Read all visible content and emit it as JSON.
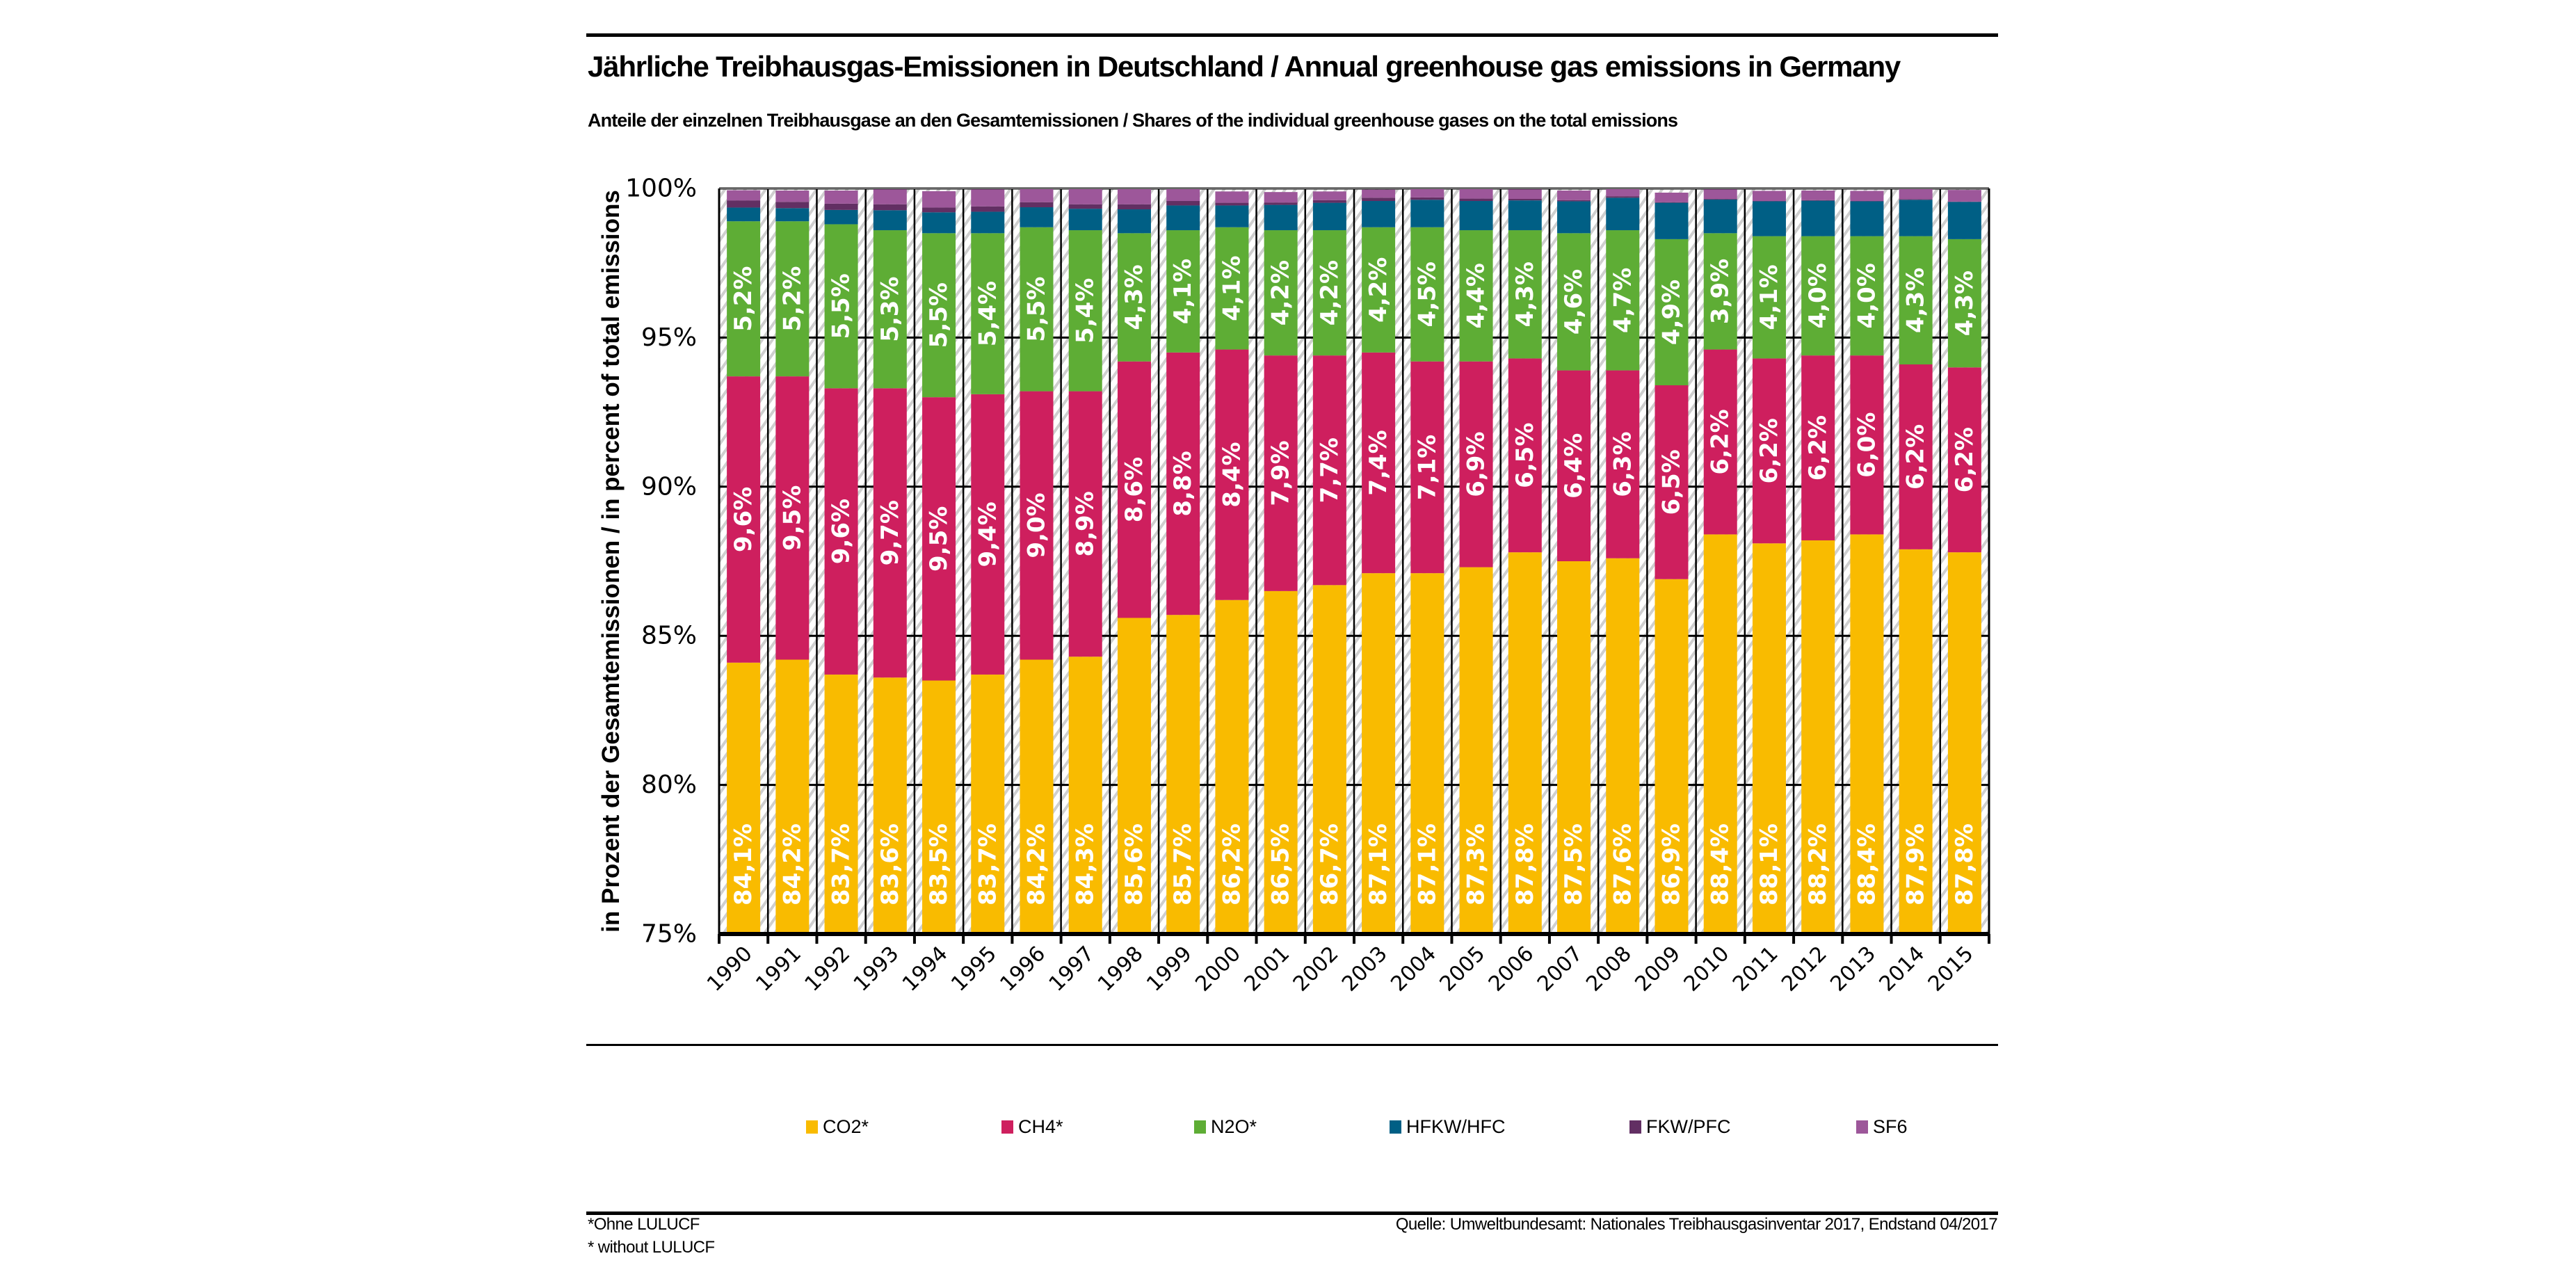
{
  "header": {
    "title": "Jährliche Treibhausgas-Emissionen in Deutschland / Annual greenhouse gas emissions in Germany",
    "subtitle": "Anteile der einzelnen Treibhausgase an den Gesamtemissionen / Shares of the individual greenhouse gases on the total emissions"
  },
  "footer": {
    "note_de": "*Ohne LULUCF",
    "note_en": "* without LULUCF",
    "source": "Quelle: Umweltbundesamt: Nationales Treibhausgasinventar 2017, Endstand 04/2017"
  },
  "chart_data": {
    "type": "bar",
    "stacked": true,
    "title": "Jährliche Treibhausgas-Emissionen in Deutschland / Annual greenhouse gas emissions in Germany",
    "subtitle": "Anteile der einzelnen Treibhausgase an den Gesamtemissionen / Shares of the individual greenhouse gases on the total emissions",
    "xlabel": "",
    "ylabel": "in Prozent der Gesamtemissionen / in percent of total emissions",
    "ylim": [
      75,
      100
    ],
    "yticks": [
      "75%",
      "80%",
      "85%",
      "90%",
      "95%",
      "100%"
    ],
    "ytick_values": [
      75,
      80,
      85,
      90,
      95,
      100
    ],
    "grid": true,
    "legend_position": "bottom",
    "categories": [
      "1990",
      "1991",
      "1992",
      "1993",
      "1994",
      "1995",
      "1996",
      "1997",
      "1998",
      "1999",
      "2000",
      "2001",
      "2002",
      "2003",
      "2004",
      "2005",
      "2006",
      "2007",
      "2008",
      "2009",
      "2010",
      "2011",
      "2012",
      "2013",
      "2014",
      "2015"
    ],
    "series": [
      {
        "name": "CO2*",
        "color": "#F9BB00",
        "labeled": true,
        "values": [
          84.1,
          84.2,
          83.7,
          83.6,
          83.5,
          83.7,
          84.2,
          84.3,
          85.6,
          85.7,
          86.2,
          86.5,
          86.7,
          87.1,
          87.1,
          87.3,
          87.8,
          87.5,
          87.6,
          86.9,
          88.4,
          88.1,
          88.2,
          88.4,
          87.9,
          87.8
        ],
        "labels": [
          "84,1%",
          "84,2%",
          "83,7%",
          "83,6%",
          "83,5%",
          "83,7%",
          "84,2%",
          "84,3%",
          "85,6%",
          "85,7%",
          "86,2%",
          "86,5%",
          "86,7%",
          "87,1%",
          "87,1%",
          "87,3%",
          "87,8%",
          "87,5%",
          "87,6%",
          "86,9%",
          "88,4%",
          "88,1%",
          "88,2%",
          "88,4%",
          "87,9%",
          "87,8%"
        ]
      },
      {
        "name": "CH4*",
        "color": "#CE1F5E",
        "labeled": true,
        "values": [
          9.6,
          9.5,
          9.6,
          9.7,
          9.5,
          9.4,
          9.0,
          8.9,
          8.6,
          8.8,
          8.4,
          7.9,
          7.7,
          7.4,
          7.1,
          6.9,
          6.5,
          6.4,
          6.3,
          6.5,
          6.2,
          6.2,
          6.2,
          6.0,
          6.2,
          6.2
        ],
        "labels": [
          "9,6%",
          "9,5%",
          "9,6%",
          "9,7%",
          "9,5%",
          "9,4%",
          "9,0%",
          "8,9%",
          "8,6%",
          "8,8%",
          "8,4%",
          "7,9%",
          "7,7%",
          "7,4%",
          "7,1%",
          "6,9%",
          "6,5%",
          "6,4%",
          "6,3%",
          "6,5%",
          "6,2%",
          "6,2%",
          "6,2%",
          "6,0%",
          "6,2%",
          "6,2%"
        ]
      },
      {
        "name": "N2O*",
        "color": "#5EAD35",
        "labeled": true,
        "values": [
          5.2,
          5.2,
          5.5,
          5.3,
          5.5,
          5.4,
          5.5,
          5.4,
          4.3,
          4.1,
          4.1,
          4.2,
          4.2,
          4.2,
          4.5,
          4.4,
          4.3,
          4.6,
          4.7,
          4.9,
          3.9,
          4.1,
          4.0,
          4.0,
          4.3,
          4.3
        ],
        "labels": [
          "5,2%",
          "5,2%",
          "5,5%",
          "5,3%",
          "5,5%",
          "5,4%",
          "5,5%",
          "5,4%",
          "4,3%",
          "4,1%",
          "4,1%",
          "4,2%",
          "4,2%",
          "4,2%",
          "4,5%",
          "4,4%",
          "4,3%",
          "4,6%",
          "4,7%",
          "4,9%",
          "3,9%",
          "4,1%",
          "4,0%",
          "4,0%",
          "4,3%",
          "4,3%"
        ]
      },
      {
        "name": "HFKW/HFC",
        "color": "#005F85",
        "labeled": false,
        "values": [
          0.46,
          0.44,
          0.48,
          0.67,
          0.7,
          0.72,
          0.67,
          0.72,
          0.8,
          0.83,
          0.73,
          0.85,
          0.92,
          0.88,
          0.92,
          0.98,
          1.0,
          1.07,
          1.09,
          1.22,
          1.13,
          1.17,
          1.19,
          1.17,
          1.22,
          1.25
        ]
      },
      {
        "name": "FKW/PFC",
        "color": "#622F63",
        "labeled": false,
        "values": [
          0.24,
          0.21,
          0.21,
          0.2,
          0.16,
          0.18,
          0.17,
          0.15,
          0.17,
          0.15,
          0.09,
          0.08,
          0.09,
          0.11,
          0.08,
          0.08,
          0.05,
          0.04,
          0.05,
          0.02,
          0.02,
          0.01,
          0.02,
          0.01,
          0.02,
          0.01
        ]
      },
      {
        "name": "SF6",
        "color": "#9D579A",
        "labeled": false,
        "values": [
          0.34,
          0.38,
          0.44,
          0.5,
          0.55,
          0.57,
          0.53,
          0.54,
          0.53,
          0.4,
          0.38,
          0.35,
          0.29,
          0.27,
          0.32,
          0.32,
          0.32,
          0.32,
          0.28,
          0.32,
          0.32,
          0.34,
          0.32,
          0.34,
          0.36,
          0.39
        ]
      }
    ]
  }
}
